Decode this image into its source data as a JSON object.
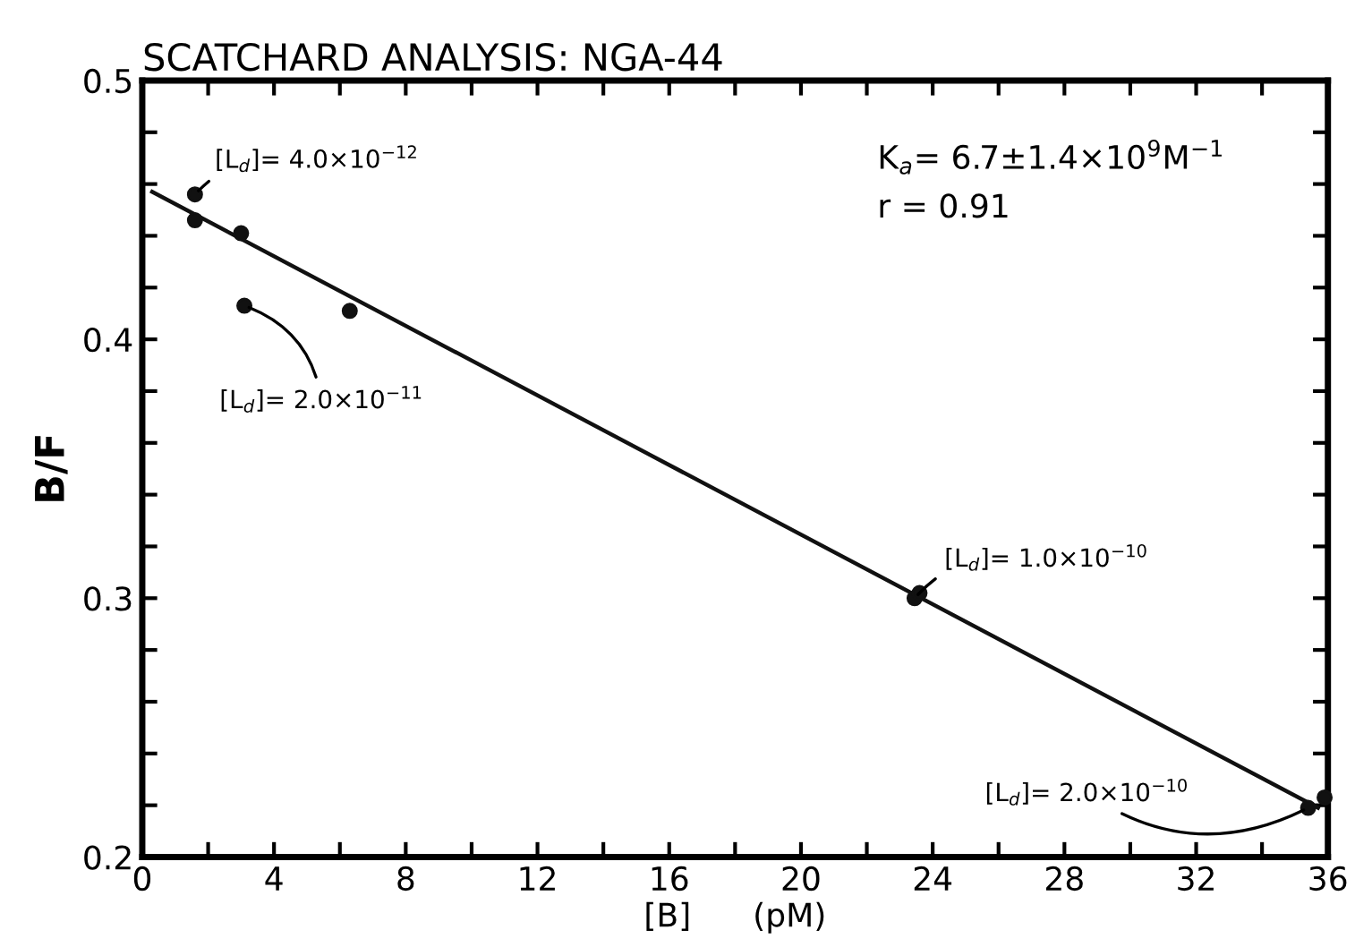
{
  "chart_data": {
    "type": "scatter",
    "title": "SCATCHARD ANALYSIS: NGA-44",
    "xlabel": "[B]      (pM)",
    "ylabel": "B/F",
    "series": [
      {
        "color": "#111111",
        "marker": "circle",
        "x": [
          1.6,
          1.6,
          3.0,
          3.1,
          6.3,
          23.45,
          23.6,
          35.4,
          35.9
        ],
        "values": [
          0.456,
          0.446,
          0.441,
          0.413,
          0.411,
          0.3,
          0.302,
          0.219,
          0.223
        ]
      },
      {
        "type": "line",
        "color": "#111111",
        "marker": "none",
        "line_style": "solid",
        "x": [
          0.3,
          35.7
        ],
        "values": [
          0.457,
          0.219
        ]
      }
    ],
    "annotations": [
      {
        "text": "[L$_{d}$]= 4.0×10$^{−12}$",
        "x": 1.6,
        "y": 0.456
      },
      {
        "text": "[L$_{d}$]= 2.0×10$^{−11}$",
        "x": 3.1,
        "y": 0.413
      },
      {
        "text": "[L$_{d}$]= 1.0×10$^{−10}$",
        "x": 23.45,
        "y": 0.3
      },
      {
        "text": "[L$_{d}$]= 2.0×10$^{−10}$",
        "x": 35.4,
        "y": 0.219
      },
      "K$_{a}$= 6.7±1.4×10$^{9}$M$^{−1}$",
      "r = 0.91"
    ],
    "xlim": [
      0,
      36
    ],
    "ylim": [
      0.2,
      0.5
    ],
    "xticks": [
      0,
      {
        "value": 2,
        "label": null
      },
      4,
      {
        "value": 6,
        "label": null
      },
      8,
      {
        "value": 10,
        "label": null
      },
      12,
      {
        "value": 14,
        "label": null
      },
      16,
      {
        "value": 18,
        "label": null
      },
      20,
      {
        "value": 22,
        "label": null
      },
      24,
      {
        "value": 26,
        "label": null
      },
      28,
      {
        "value": 30,
        "label": null
      },
      32,
      {
        "value": 34,
        "label": null
      },
      36
    ],
    "yticks": [
      0.2,
      {
        "value": 0.22,
        "label": null
      },
      {
        "value": 0.24,
        "label": null
      },
      {
        "value": 0.26,
        "label": null
      },
      {
        "value": 0.28,
        "label": null
      },
      0.3,
      {
        "value": 0.32,
        "label": null
      },
      {
        "value": 0.34,
        "label": null
      },
      {
        "value": 0.36,
        "label": null
      },
      {
        "value": 0.38,
        "label": null
      },
      0.4,
      {
        "value": 0.42,
        "label": null
      },
      {
        "value": 0.44,
        "label": null
      },
      {
        "value": 0.46,
        "label": null
      },
      {
        "value": 0.48,
        "label": null
      },
      0.5
    ],
    "grid": false,
    "legend": false
  }
}
